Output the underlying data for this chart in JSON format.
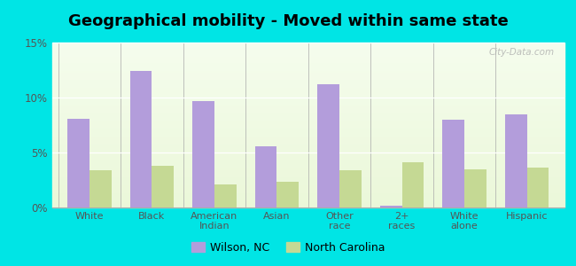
{
  "title": "Geographical mobility - Moved within same state",
  "categories": [
    "White",
    "Black",
    "American\nIndian",
    "Asian",
    "Other\nrace",
    "2+\nraces",
    "White\nalone",
    "Hispanic"
  ],
  "wilson_values": [
    8.1,
    12.4,
    9.7,
    5.6,
    11.2,
    0.15,
    8.0,
    8.5
  ],
  "nc_values": [
    3.4,
    3.8,
    2.1,
    2.3,
    3.4,
    4.1,
    3.5,
    3.6
  ],
  "wilson_color": "#b39ddb",
  "nc_color": "#c5d994",
  "background_color": "#00e5e5",
  "ylim": [
    0,
    15
  ],
  "yticks": [
    0,
    5,
    10,
    15
  ],
  "ytick_labels": [
    "0%",
    "5%",
    "10%",
    "15%"
  ],
  "legend_wilson": "Wilson, NC",
  "legend_nc": "North Carolina",
  "bar_width": 0.35,
  "title_fontsize": 13,
  "watermark": "City-Data.com"
}
